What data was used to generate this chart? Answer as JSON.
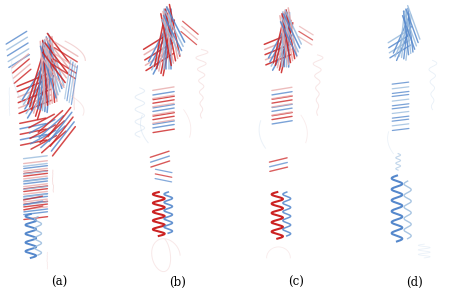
{
  "figure_width": 4.74,
  "figure_height": 2.95,
  "dpi": 100,
  "background_color": "#ffffff",
  "panel_labels": [
    "(a)",
    "(b)",
    "(c)",
    "(d)"
  ],
  "label_fontsize": 8.5,
  "label_color": "#000000",
  "red": "#cc2222",
  "blue": "#5588cc",
  "light_red": "#e8aaaa",
  "light_blue": "#99bbdd",
  "lighter_red": "#f0cccc",
  "lighter_blue": "#ccddef"
}
